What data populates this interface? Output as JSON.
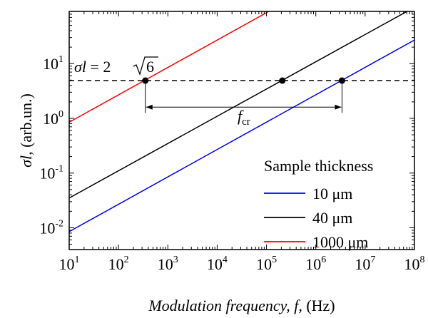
{
  "chart_data": {
    "type": "line",
    "title": "",
    "xlabel": {
      "italic": "Modulation frequency, f,",
      "unit": " (Hz)"
    },
    "ylabel": {
      "italic": "σl,",
      "unit": " (arb.un.)"
    },
    "x_scale": "log",
    "y_scale": "log",
    "xlim": [
      10,
      100000000
    ],
    "ylim": [
      0.004,
      90
    ],
    "x_ticks": [
      {
        "base": "10",
        "exp": "1",
        "value": 10
      },
      {
        "base": "10",
        "exp": "2",
        "value": 100
      },
      {
        "base": "10",
        "exp": "3",
        "value": 1000
      },
      {
        "base": "10",
        "exp": "4",
        "value": 10000
      },
      {
        "base": "10",
        "exp": "5",
        "value": 100000
      },
      {
        "base": "10",
        "exp": "6",
        "value": 1000000
      },
      {
        "base": "10",
        "exp": "7",
        "value": 10000000
      },
      {
        "base": "10",
        "exp": "8",
        "value": 100000000
      }
    ],
    "y_ticks": [
      {
        "base": "10",
        "exp": "-2",
        "value": 0.01
      },
      {
        "base": "10",
        "exp": "-1",
        "value": 0.1
      },
      {
        "base": "10",
        "exp": "0",
        "value": 1
      },
      {
        "base": "10",
        "exp": "1",
        "value": 10
      }
    ],
    "grid": false,
    "legend": {
      "title": "Sample thickness",
      "placement": "bottom-right"
    },
    "series": [
      {
        "name": "10 μm",
        "color": "#0000ff",
        "x": [
          10,
          100000000
        ],
        "y": [
          0.0085,
          27
        ]
      },
      {
        "name": "40 μm",
        "color": "#000000",
        "x": [
          10,
          100000000
        ],
        "y": [
          0.035,
          107
        ]
      },
      {
        "name": "1000 μm",
        "color": "#ff0000",
        "x": [
          10,
          100000000
        ],
        "y": [
          0.85,
          2700
        ]
      }
    ],
    "threshold": {
      "value": 4.899,
      "label_lhs": "σl = 2",
      "label_radicand": "6"
    },
    "markers": [
      {
        "x": 350,
        "y": 4.899
      },
      {
        "x": 210000,
        "y": 4.899
      },
      {
        "x": 3400000,
        "y": 4.899
      }
    ],
    "annotation": {
      "label_main": "f",
      "label_sub": "cr",
      "x_from": 350,
      "x_to": 3400000,
      "y": 1.6
    }
  }
}
